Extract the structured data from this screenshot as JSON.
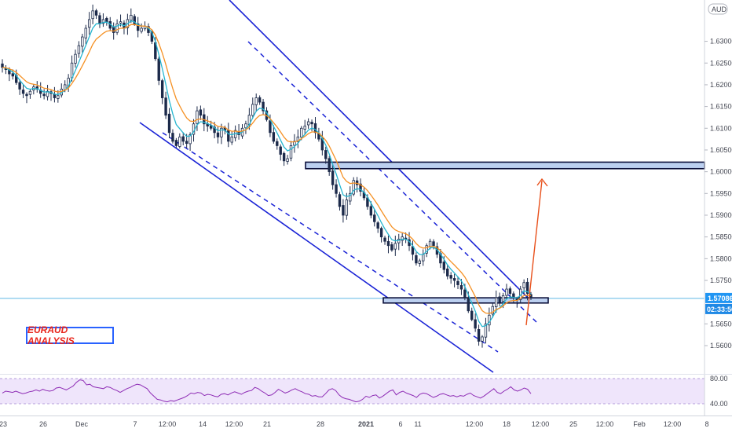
{
  "colors": {
    "candle": "#1c2a4a",
    "ema_fast": "#26b6d0",
    "ema_slow": "#f59124",
    "channel": "#1a23d6",
    "zone_fill": "#bcd0f0",
    "projection": "#e8501b",
    "rsi_line": "#8e2cb5",
    "rsi_band": "#eadcfa",
    "price_line": "#5fb6e4",
    "price_badge": "#2196f3",
    "label_text": "#e8251b",
    "label_border": "#2962ff"
  },
  "labels": {
    "annotation": "EURAUD ANALYSIS",
    "currency_badge": "AUD",
    "current_price": "1.57086",
    "countdown": "02:33:56"
  },
  "chart_data": [
    {
      "type": "candlestick",
      "title": "",
      "symbol_currency": "AUD",
      "y_ticks": [
        "1.63000",
        "1.62500",
        "1.62000",
        "1.61500",
        "1.61000",
        "1.60500",
        "1.60000",
        "1.59500",
        "1.59000",
        "1.58500",
        "1.58000",
        "1.57500",
        "1.56500",
        "1.56000"
      ],
      "x_ticks": [
        "23",
        "26",
        "Dec",
        "7",
        "12:00",
        "14",
        "12:00",
        "21",
        "28",
        "2021",
        "6",
        "11",
        "12:00",
        "18",
        "12:00",
        "25",
        "12:00",
        "Feb",
        "12:00",
        "8"
      ],
      "ylim": [
        1.5535,
        1.6395
      ],
      "current_price": 1.57086,
      "resistance_zone": [
        1.6007,
        1.6022
      ],
      "support_zone": [
        1.5698,
        1.571
      ],
      "close_series": [
        1.624,
        1.6235,
        1.6225,
        1.622,
        1.6205,
        1.619,
        1.618,
        1.6175,
        1.6185,
        1.6195,
        1.619,
        1.618,
        1.6175,
        1.6185,
        1.618,
        1.617,
        1.6175,
        1.619,
        1.62,
        1.6215,
        1.625,
        1.627,
        1.629,
        1.631,
        1.633,
        1.635,
        1.637,
        1.636,
        1.634,
        1.635,
        1.6345,
        1.633,
        1.632,
        1.634,
        1.6345,
        1.633,
        1.635,
        1.636,
        1.634,
        1.6325,
        1.633,
        1.6335,
        1.632,
        1.63,
        1.626,
        1.621,
        1.617,
        1.613,
        1.609,
        1.607,
        1.606,
        1.608,
        1.607,
        1.6065,
        1.6085,
        1.611,
        1.614,
        1.613,
        1.611,
        1.6105,
        1.61,
        1.609,
        1.608,
        1.61,
        1.6095,
        1.607,
        1.608,
        1.6095,
        1.6085,
        1.61,
        1.611,
        1.613,
        1.6155,
        1.617,
        1.616,
        1.614,
        1.612,
        1.609,
        1.607,
        1.606,
        1.604,
        1.6025,
        1.603,
        1.606,
        1.607,
        1.608,
        1.61,
        1.6105,
        1.6115,
        1.611,
        1.609,
        1.6075,
        1.605,
        1.603,
        1.6,
        1.597,
        1.595,
        1.592,
        1.59,
        1.5935,
        1.595,
        1.598,
        1.597,
        1.5955,
        1.594,
        1.592,
        1.59,
        1.5885,
        1.587,
        1.585,
        1.584,
        1.583,
        1.582,
        1.5835,
        1.5845,
        1.585,
        1.5845,
        1.583,
        1.581,
        1.579,
        1.5795,
        1.581,
        1.583,
        1.584,
        1.583,
        1.581,
        1.579,
        1.5775,
        1.576,
        1.5755,
        1.575,
        1.574,
        1.573,
        1.571,
        1.568,
        1.566,
        1.564,
        1.561,
        1.562,
        1.565,
        1.567,
        1.569,
        1.571,
        1.57,
        1.5715,
        1.573,
        1.572,
        1.571,
        1.5705,
        1.573,
        1.5745,
        1.572,
        1.5709
      ]
    },
    {
      "type": "line",
      "title": "",
      "name": "RSI",
      "ylim": [
        30,
        85
      ],
      "y_ticks": [
        "80.00",
        "40.00"
      ],
      "band": [
        40,
        80
      ],
      "values": [
        57,
        60,
        59,
        58,
        60,
        58,
        56,
        57,
        59,
        60,
        62,
        60,
        63,
        61,
        60,
        61,
        65,
        66,
        64,
        62,
        65,
        68,
        74,
        78,
        77,
        70,
        71,
        67,
        66,
        65,
        64,
        67,
        66,
        63,
        61,
        58,
        61,
        64,
        66,
        69,
        71,
        70,
        67,
        64,
        57,
        52,
        47,
        46,
        44,
        43,
        45,
        44,
        46,
        48,
        50,
        53,
        57,
        56,
        58,
        57,
        53,
        55,
        54,
        52,
        51,
        55,
        56,
        54,
        57,
        59,
        57,
        55,
        58,
        60,
        61,
        66,
        64,
        60,
        57,
        53,
        54,
        58,
        63,
        60,
        57,
        59,
        62,
        64,
        61,
        59,
        56,
        55,
        52,
        53,
        51,
        51,
        56,
        62,
        64,
        61,
        54,
        50,
        48,
        47,
        45,
        43,
        44,
        47,
        52,
        50,
        53,
        54,
        49,
        52,
        56,
        60,
        62,
        54,
        58,
        60,
        57,
        55,
        53,
        50,
        55,
        57,
        56,
        53,
        50,
        52,
        55,
        56,
        54,
        52,
        53,
        51,
        53,
        52,
        55,
        57,
        53,
        51,
        49,
        52,
        56,
        60,
        64,
        58,
        56,
        60,
        63,
        67,
        62,
        60,
        62,
        65,
        63,
        56
      ]
    }
  ]
}
